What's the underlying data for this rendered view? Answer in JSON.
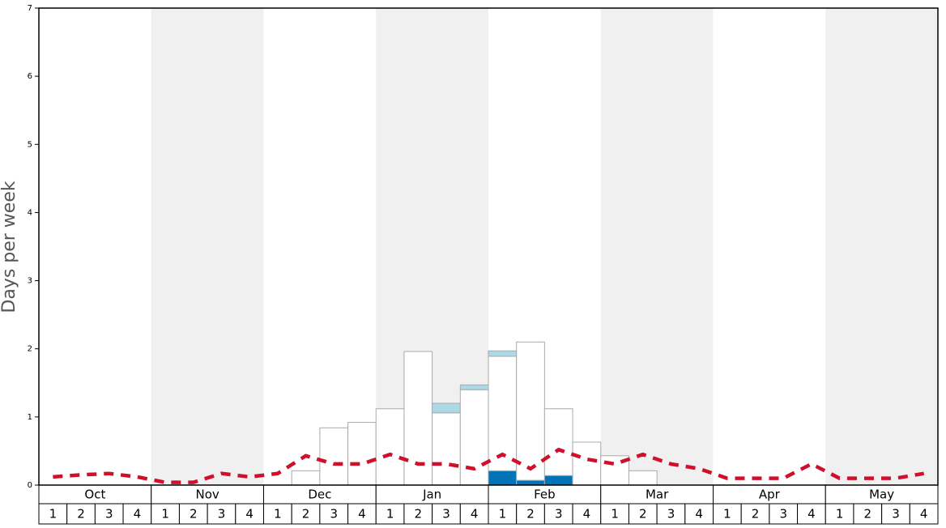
{
  "chart_data": {
    "type": "bar",
    "y_label": "Days per week",
    "months": [
      "Oct",
      "Nov",
      "Dec",
      "Jan",
      "Feb",
      "Mar",
      "Apr",
      "May"
    ],
    "categories": [
      "1",
      "2",
      "3",
      "4",
      "1",
      "2",
      "3",
      "4",
      "1",
      "2",
      "3",
      "4",
      "1",
      "2",
      "3",
      "4",
      "1",
      "2",
      "3",
      "4",
      "1",
      "2",
      "3",
      "4",
      "1",
      "2",
      "3",
      "4",
      "1",
      "2",
      "3",
      "4"
    ],
    "series": [
      {
        "color": "#0074b7",
        "values": [
          null,
          null,
          null,
          null,
          null,
          null,
          null,
          null,
          null,
          null,
          null,
          null,
          null,
          null,
          null,
          null,
          0.21,
          0.07,
          0.14,
          null,
          null,
          null,
          null,
          null,
          null,
          null,
          null,
          null,
          null,
          null,
          null,
          null
        ]
      },
      {
        "color": "#ffffff",
        "values": [
          null,
          null,
          null,
          null,
          null,
          null,
          null,
          null,
          null,
          0.21,
          0.84,
          0.92,
          1.12,
          1.96,
          1.06,
          1.4,
          1.68,
          2.03,
          0.98,
          0.63,
          0.43,
          0.21,
          null,
          null,
          null,
          null,
          null,
          null,
          null,
          null,
          null,
          null
        ]
      },
      {
        "color": "#add8e6",
        "values": [
          null,
          null,
          null,
          null,
          null,
          null,
          null,
          null,
          null,
          null,
          null,
          null,
          null,
          null,
          0.14,
          0.07,
          0.08,
          null,
          null,
          null,
          null,
          null,
          null,
          null,
          null,
          null,
          null,
          null,
          null,
          null,
          null,
          null
        ]
      }
    ],
    "line": {
      "color": "#d0102a",
      "values": [
        0.12,
        0.15,
        0.17,
        0.12,
        0.04,
        0.04,
        0.17,
        0.12,
        0.17,
        0.43,
        0.31,
        0.31,
        0.45,
        0.31,
        0.31,
        0.24,
        0.45,
        0.24,
        0.52,
        0.38,
        0.31,
        0.45,
        0.31,
        0.24,
        0.1,
        0.1,
        0.1,
        0.31,
        0.1,
        0.1,
        0.1,
        0.17
      ]
    },
    "ylim": [
      0,
      7
    ],
    "yticks": [
      0,
      1,
      2,
      3,
      4,
      5,
      6,
      7
    ],
    "band_color": "#f0f0f0"
  }
}
